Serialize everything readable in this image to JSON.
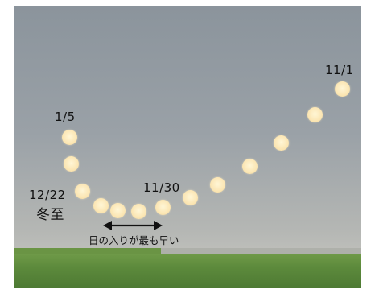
{
  "labels": {
    "nov1": "11/1",
    "nov30": "11/30",
    "dec22": "12/22",
    "winter_solstice": "冬至",
    "jan5": "1/5"
  },
  "caption": "日の入りが最も早い",
  "colors": {
    "sky_top": "#8b949c",
    "sky_bottom": "#c3c3be",
    "sun": "#fbe6b4",
    "ground": "#5d8a3c",
    "text": "#111111"
  },
  "sun_positions_count": 13
}
